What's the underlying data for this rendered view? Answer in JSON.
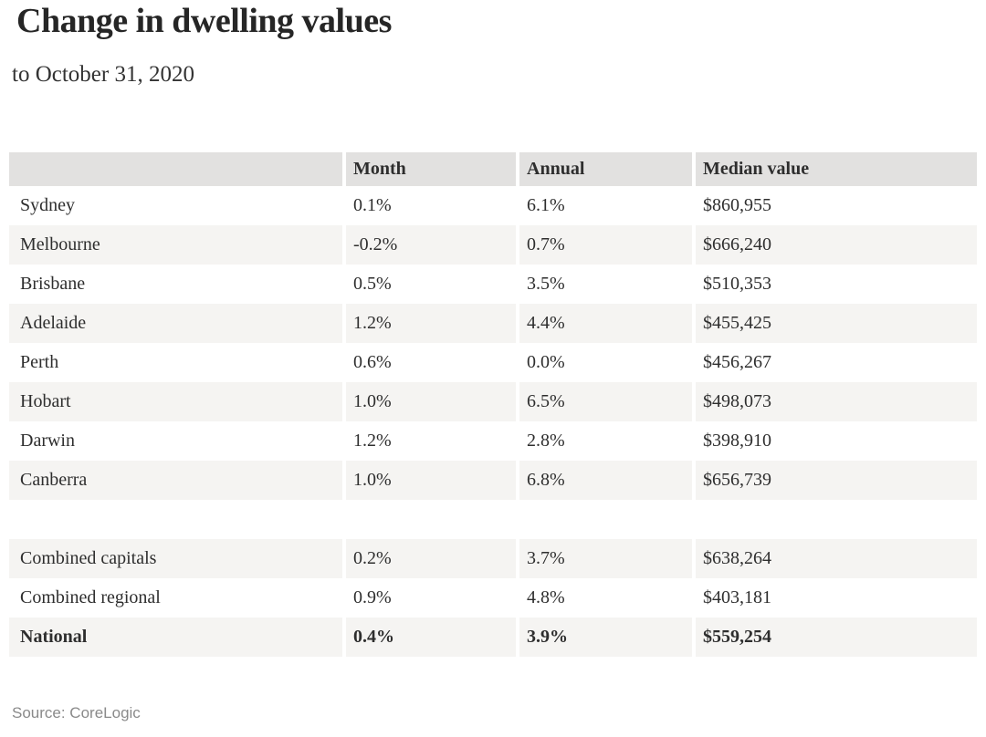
{
  "colors": {
    "header_bg": "#e2e1e0",
    "stripe_bg": "#f5f4f2",
    "text": "#2e2e2e",
    "source_text": "#8a8a8a"
  },
  "chart_data": {
    "type": "table",
    "title": "Change in dwelling values",
    "subtitle": "to October 31, 2020",
    "columns": [
      "",
      "Month",
      "Annual",
      "Median value"
    ],
    "rows": [
      {
        "label": "Sydney",
        "month": "0.1%",
        "annual": "6.1%",
        "median_value": "$860,955",
        "bold": false
      },
      {
        "label": "Melbourne",
        "month": "-0.2%",
        "annual": "0.7%",
        "median_value": "$666,240",
        "bold": false
      },
      {
        "label": "Brisbane",
        "month": "0.5%",
        "annual": "3.5%",
        "median_value": "$510,353",
        "bold": false
      },
      {
        "label": "Adelaide",
        "month": "1.2%",
        "annual": "4.4%",
        "median_value": "$455,425",
        "bold": false
      },
      {
        "label": "Perth",
        "month": "0.6%",
        "annual": "0.0%",
        "median_value": "$456,267",
        "bold": false
      },
      {
        "label": "Hobart",
        "month": "1.0%",
        "annual": "6.5%",
        "median_value": "$498,073",
        "bold": false
      },
      {
        "label": "Darwin",
        "month": "1.2%",
        "annual": "2.8%",
        "median_value": "$398,910",
        "bold": false
      },
      {
        "label": "Canberra",
        "month": "1.0%",
        "annual": "6.8%",
        "median_value": "$656,739",
        "bold": false
      },
      {
        "spacer": true
      },
      {
        "label": "Combined capitals",
        "month": "0.2%",
        "annual": "3.7%",
        "median_value": "$638,264",
        "bold": false
      },
      {
        "label": "Combined regional",
        "month": "0.9%",
        "annual": "4.8%",
        "median_value": "$403,181",
        "bold": false
      },
      {
        "label": "National",
        "month": "0.4%",
        "annual": "3.9%",
        "median_value": "$559,254",
        "bold": true
      }
    ],
    "source": "Source: CoreLogic"
  }
}
